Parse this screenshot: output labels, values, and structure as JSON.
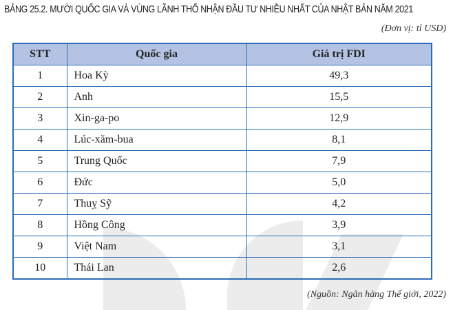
{
  "title": "BẢNG 25.2. MƯỜI QUỐC GIA VÀ VÙNG LÃNH THỔ NHẬN ĐẦU TƯ NHIỀU NHẤT CỦA NHẬT BẢN NĂM 2021",
  "unit": "(Đơn vị: tỉ USD)",
  "headers": [
    "STT",
    "Quốc gia",
    "Giá trị FDI"
  ],
  "rows": [
    {
      "stt": "1",
      "country": "Hoa Kỳ",
      "fdi": "49,3"
    },
    {
      "stt": "2",
      "country": "Anh",
      "fdi": "15,5"
    },
    {
      "stt": "3",
      "country": "Xin-ga-po",
      "fdi": "12,9"
    },
    {
      "stt": "4",
      "country": "Lúc-xăm-bua",
      "fdi": "8,1"
    },
    {
      "stt": "5",
      "country": "Trung Quốc",
      "fdi": "7,9"
    },
    {
      "stt": "6",
      "country": "Đức",
      "fdi": "5,0"
    },
    {
      "stt": "7",
      "country": "Thuỵ Sỹ",
      "fdi": "4,2"
    },
    {
      "stt": "8",
      "country": "Hồng Công",
      "fdi": "3,9"
    },
    {
      "stt": "9",
      "country": "Việt Nam",
      "fdi": "3,1"
    },
    {
      "stt": "10",
      "country": "Thái Lan",
      "fdi": "2,6"
    }
  ],
  "source": "(Nguồn: Ngân hàng Thế giới, 2022)",
  "colors": {
    "header_bg": "#b4c3e4",
    "border": "#2a6bb5"
  }
}
